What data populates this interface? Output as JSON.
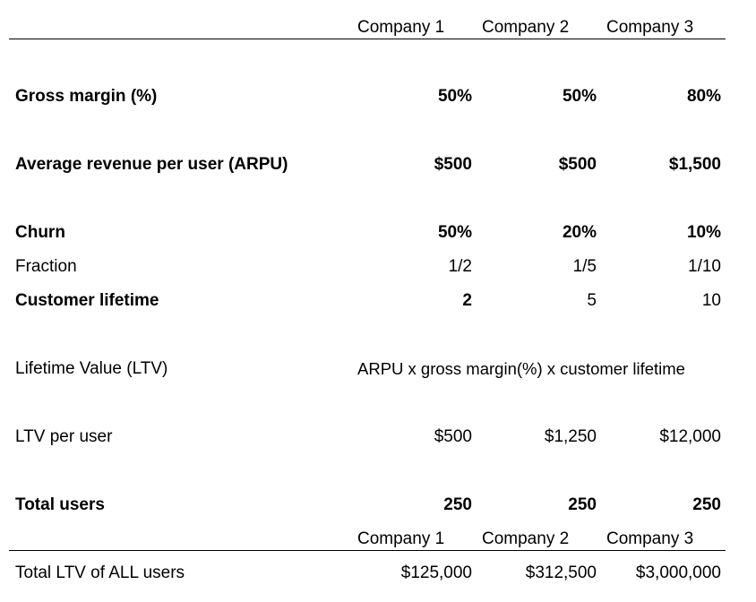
{
  "header": {
    "columns": [
      "Company 1",
      "Company 2",
      "Company 3"
    ]
  },
  "rows": {
    "gross_margin": {
      "label": "Gross margin (%)",
      "values": [
        "50%",
        "50%",
        "80%"
      ]
    },
    "arpu": {
      "label": "Average revenue per user (ARPU)",
      "values": [
        "$500",
        "$500",
        "$1,500"
      ]
    },
    "churn": {
      "label": "Churn",
      "values": [
        "50%",
        "20%",
        "10%"
      ]
    },
    "fraction": {
      "label": "Fraction",
      "values": [
        "1/2",
        "1/5",
        "1/10"
      ]
    },
    "customer_lifetime": {
      "label": "Customer lifetime",
      "values": [
        "2",
        "5",
        "10"
      ]
    },
    "ltv_formula": {
      "label": "Lifetime Value (LTV)",
      "formula": "ARPU x gross margin(%) x customer lifetime"
    },
    "ltv_per_user": {
      "label": "LTV per user",
      "values": [
        "$500",
        "$1,250",
        "$12,000"
      ]
    },
    "total_users": {
      "label": "Total users",
      "values": [
        "250",
        "250",
        "250"
      ]
    },
    "total_ltv": {
      "label": "Total LTV of ALL users",
      "values": [
        "$125,000",
        "$312,500",
        "$3,000,000"
      ]
    }
  },
  "footer_header": {
    "columns": [
      "Company 1",
      "Company 2",
      "Company 3"
    ]
  }
}
